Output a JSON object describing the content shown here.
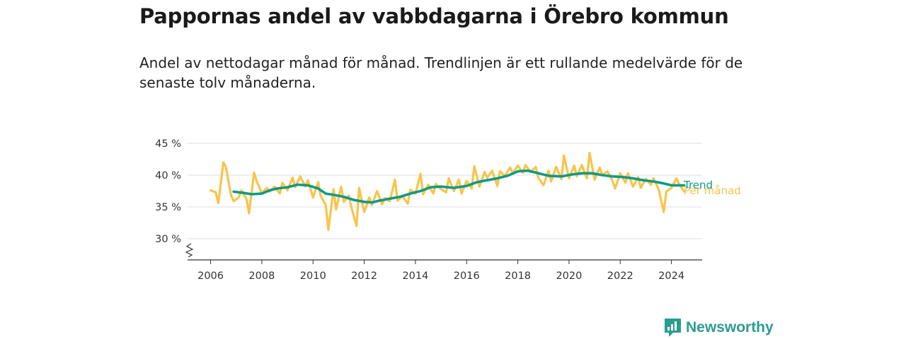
{
  "chart_data": {
    "type": "line",
    "title": "Pappornas andel av vabbdagarna i Örebro kommun",
    "subtitle": "Andel av nettodagar månad för månad. Trendlinjen är ett rullande medelvärde för de senaste tolv månaderna.",
    "ylim": [
      27,
      45
    ],
    "xlim": [
      2005.1,
      2025.2
    ],
    "x_ticks": [
      {
        "value": 2006,
        "label": "2006"
      },
      {
        "value": 2008,
        "label": "2008"
      },
      {
        "value": 2010,
        "label": "2010"
      },
      {
        "value": 2012,
        "label": "2012"
      },
      {
        "value": 2014,
        "label": "2014"
      },
      {
        "value": 2016,
        "label": "2016"
      },
      {
        "value": 2018,
        "label": "2018"
      },
      {
        "value": 2020,
        "label": "2020"
      },
      {
        "value": 2022,
        "label": "2022"
      },
      {
        "value": 2024,
        "label": "2024"
      }
    ],
    "y_ticks": [
      {
        "value": 30,
        "label": "30 %"
      },
      {
        "value": 35,
        "label": "35 %"
      },
      {
        "value": 40,
        "label": "40 %"
      },
      {
        "value": 45,
        "label": "45 %"
      }
    ],
    "grid": true,
    "broken_axis": true,
    "series": [
      {
        "name": "Per månad",
        "color": "#f8c44b",
        "points": [
          [
            2006.0,
            37.6
          ],
          [
            2006.2,
            37.3
          ],
          [
            2006.3,
            35.6
          ],
          [
            2006.5,
            42.0
          ],
          [
            2006.6,
            41.2
          ],
          [
            2006.8,
            36.8
          ],
          [
            2006.9,
            35.9
          ],
          [
            2007.1,
            36.5
          ],
          [
            2007.2,
            37.6
          ],
          [
            2007.4,
            36.3
          ],
          [
            2007.5,
            34.0
          ],
          [
            2007.7,
            40.4
          ],
          [
            2007.8,
            39.0
          ],
          [
            2008.0,
            37.2
          ],
          [
            2008.2,
            38.0
          ],
          [
            2008.3,
            37.4
          ],
          [
            2008.5,
            38.2
          ],
          [
            2008.7,
            37.1
          ],
          [
            2008.8,
            38.8
          ],
          [
            2009.0,
            37.6
          ],
          [
            2009.2,
            39.6
          ],
          [
            2009.3,
            38.1
          ],
          [
            2009.5,
            39.8
          ],
          [
            2009.7,
            38.2
          ],
          [
            2009.8,
            39.2
          ],
          [
            2010.0,
            36.5
          ],
          [
            2010.2,
            38.9
          ],
          [
            2010.3,
            36.7
          ],
          [
            2010.5,
            35.3
          ],
          [
            2010.6,
            31.4
          ],
          [
            2010.8,
            37.8
          ],
          [
            2010.9,
            34.6
          ],
          [
            2011.1,
            38.2
          ],
          [
            2011.2,
            35.8
          ],
          [
            2011.4,
            36.8
          ],
          [
            2011.5,
            34.9
          ],
          [
            2011.7,
            32.0
          ],
          [
            2011.8,
            38.0
          ],
          [
            2012.0,
            34.2
          ],
          [
            2012.2,
            36.5
          ],
          [
            2012.3,
            35.3
          ],
          [
            2012.5,
            37.5
          ],
          [
            2012.7,
            35.4
          ],
          [
            2012.8,
            36.4
          ],
          [
            2013.0,
            35.9
          ],
          [
            2013.2,
            39.3
          ],
          [
            2013.3,
            36.0
          ],
          [
            2013.5,
            36.7
          ],
          [
            2013.7,
            35.5
          ],
          [
            2013.8,
            37.7
          ],
          [
            2014.0,
            37.1
          ],
          [
            2014.2,
            40.2
          ],
          [
            2014.3,
            37.0
          ],
          [
            2014.5,
            38.5
          ],
          [
            2014.7,
            37.1
          ],
          [
            2014.8,
            38.6
          ],
          [
            2015.0,
            37.8
          ],
          [
            2015.2,
            37.3
          ],
          [
            2015.3,
            39.5
          ],
          [
            2015.5,
            37.5
          ],
          [
            2015.7,
            39.3
          ],
          [
            2015.8,
            37.1
          ],
          [
            2016.0,
            39.1
          ],
          [
            2016.2,
            37.9
          ],
          [
            2016.3,
            41.4
          ],
          [
            2016.5,
            38.2
          ],
          [
            2016.7,
            40.5
          ],
          [
            2016.8,
            39.6
          ],
          [
            2017.0,
            40.7
          ],
          [
            2017.2,
            38.3
          ],
          [
            2017.3,
            40.6
          ],
          [
            2017.5,
            39.9
          ],
          [
            2017.7,
            41.2
          ],
          [
            2017.8,
            40.3
          ],
          [
            2018.0,
            41.5
          ],
          [
            2018.2,
            40.4
          ],
          [
            2018.3,
            41.6
          ],
          [
            2018.5,
            40.5
          ],
          [
            2018.7,
            41.3
          ],
          [
            2018.8,
            39.6
          ],
          [
            2019.0,
            38.4
          ],
          [
            2019.2,
            40.7
          ],
          [
            2019.3,
            39.0
          ],
          [
            2019.5,
            41.3
          ],
          [
            2019.7,
            39.4
          ],
          [
            2019.8,
            43.1
          ],
          [
            2020.0,
            39.5
          ],
          [
            2020.2,
            41.5
          ],
          [
            2020.3,
            39.8
          ],
          [
            2020.5,
            41.6
          ],
          [
            2020.7,
            39.5
          ],
          [
            2020.8,
            43.5
          ],
          [
            2021.0,
            39.3
          ],
          [
            2021.2,
            41.2
          ],
          [
            2021.3,
            40.0
          ],
          [
            2021.5,
            40.6
          ],
          [
            2021.7,
            39.1
          ],
          [
            2021.8,
            37.9
          ],
          [
            2022.0,
            40.3
          ],
          [
            2022.2,
            38.8
          ],
          [
            2022.3,
            40.3
          ],
          [
            2022.5,
            38.2
          ],
          [
            2022.7,
            39.7
          ],
          [
            2022.8,
            38.0
          ],
          [
            2023.0,
            39.4
          ],
          [
            2023.2,
            38.5
          ],
          [
            2023.3,
            39.5
          ],
          [
            2023.5,
            37.8
          ],
          [
            2023.7,
            34.2
          ],
          [
            2023.8,
            37.4
          ],
          [
            2024.0,
            38.0
          ],
          [
            2024.2,
            39.5
          ],
          [
            2024.3,
            38.6
          ],
          [
            2024.5,
            37.4
          ]
        ]
      },
      {
        "name": "Trend",
        "color": "#0f9a86",
        "points": [
          [
            2006.9,
            37.4
          ],
          [
            2007.3,
            37.2
          ],
          [
            2007.6,
            37.0
          ],
          [
            2008.0,
            37.1
          ],
          [
            2008.3,
            37.6
          ],
          [
            2008.6,
            37.9
          ],
          [
            2009.0,
            38.1
          ],
          [
            2009.4,
            38.5
          ],
          [
            2009.8,
            38.4
          ],
          [
            2010.2,
            37.9
          ],
          [
            2010.5,
            37.1
          ],
          [
            2010.8,
            36.9
          ],
          [
            2011.2,
            36.6
          ],
          [
            2011.6,
            36.1
          ],
          [
            2012.0,
            35.8
          ],
          [
            2012.3,
            35.7
          ],
          [
            2012.6,
            36.0
          ],
          [
            2013.0,
            36.3
          ],
          [
            2013.4,
            36.6
          ],
          [
            2013.8,
            37.1
          ],
          [
            2014.2,
            37.5
          ],
          [
            2014.6,
            38.1
          ],
          [
            2015.0,
            38.2
          ],
          [
            2015.5,
            38.0
          ],
          [
            2016.0,
            38.3
          ],
          [
            2016.4,
            38.9
          ],
          [
            2016.8,
            39.2
          ],
          [
            2017.2,
            39.5
          ],
          [
            2017.6,
            39.9
          ],
          [
            2018.0,
            40.6
          ],
          [
            2018.4,
            40.7
          ],
          [
            2018.8,
            40.3
          ],
          [
            2019.2,
            39.9
          ],
          [
            2019.7,
            39.8
          ],
          [
            2020.1,
            40.1
          ],
          [
            2020.5,
            40.3
          ],
          [
            2020.9,
            40.3
          ],
          [
            2021.3,
            40.0
          ],
          [
            2021.7,
            39.8
          ],
          [
            2022.1,
            39.7
          ],
          [
            2022.5,
            39.5
          ],
          [
            2022.9,
            39.2
          ],
          [
            2023.3,
            39.0
          ],
          [
            2023.7,
            38.7
          ],
          [
            2024.0,
            38.4
          ],
          [
            2024.3,
            38.4
          ],
          [
            2024.5,
            38.4
          ]
        ]
      }
    ]
  },
  "brand": {
    "name": "Newsworthy"
  }
}
